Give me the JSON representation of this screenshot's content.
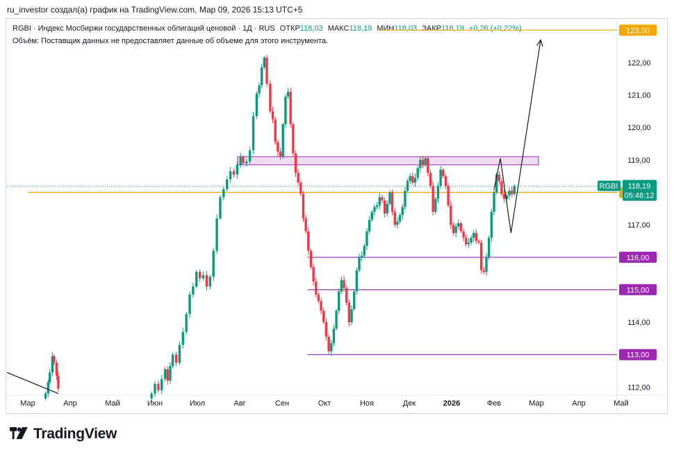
{
  "caption": "ru_investor создал(а) график на TradingView.com, Мар 09, 2026 15:13 UTC+5",
  "legend": {
    "title": "RGBI · Индекс Мосбиржи государственных облигаций ценовой · 1Д · RUS",
    "open_label": "ОТКР",
    "open": "118,03",
    "high_label": "МАКС",
    "high": "118,19",
    "low_label": "МИН",
    "low": "118,03",
    "close_label": "ЗАКР",
    "close": "118,19",
    "change": "+0,26 (+0,22%)"
  },
  "volume_note": "Объём: Поставщик данных не предоставляет данные об объеме для этого инструмента.",
  "brand": "TradingView",
  "colors": {
    "up": "#089981",
    "down": "#f23645",
    "orange": "#f7a600",
    "purple": "#9c27b0",
    "zone": "#e1bee7"
  },
  "chart_data": {
    "type": "candlestick",
    "symbol": "RGBI",
    "timeframe": "1Д",
    "ylim": [
      111.75,
      123.35
    ],
    "y_ticks": [
      "112,00",
      "113,00",
      "114,00",
      "115,00",
      "116,00",
      "117,00",
      "118,00",
      "119,00",
      "120,00",
      "121,00",
      "122,00",
      "123,00"
    ],
    "x_ticks": [
      "Мар",
      "Апр",
      "Май",
      "Июн",
      "Июл",
      "Авг",
      "Сен",
      "Окт",
      "Ноя",
      "Дек",
      "2026",
      "Фев",
      "Мар",
      "Апр",
      "Май"
    ],
    "x_tick_bold": "2026",
    "x_range_months": [
      0,
      14.3
    ],
    "series": [
      [
        0.42,
        111.8
      ],
      [
        0.48,
        112.15
      ],
      [
        0.52,
        112.45
      ],
      [
        0.58,
        112.95
      ],
      [
        0.62,
        112.75
      ],
      [
        0.68,
        112.35
      ],
      [
        0.72,
        111.95
      ],
      [
        2.92,
        111.8
      ],
      [
        3.0,
        112.1
      ],
      [
        3.08,
        111.9
      ],
      [
        3.16,
        112.25
      ],
      [
        3.24,
        112.55
      ],
      [
        3.3,
        112.2
      ],
      [
        3.36,
        112.65
      ],
      [
        3.42,
        113.0
      ],
      [
        3.5,
        112.75
      ],
      [
        3.58,
        113.3
      ],
      [
        3.66,
        113.7
      ],
      [
        3.74,
        114.25
      ],
      [
        3.82,
        114.85
      ],
      [
        3.9,
        115.1
      ],
      [
        3.98,
        115.55
      ],
      [
        4.06,
        115.35
      ],
      [
        4.14,
        115.45
      ],
      [
        4.22,
        115.1
      ],
      [
        4.3,
        115.4
      ],
      [
        4.38,
        116.2
      ],
      [
        4.46,
        117.2
      ],
      [
        4.54,
        117.85
      ],
      [
        4.62,
        118.1
      ],
      [
        4.7,
        118.4
      ],
      [
        4.78,
        118.65
      ],
      [
        4.86,
        118.55
      ],
      [
        4.94,
        118.85
      ],
      [
        5.02,
        119.1
      ],
      [
        5.08,
        118.9
      ],
      [
        5.16,
        118.95
      ],
      [
        5.24,
        119.3
      ],
      [
        5.32,
        120.35
      ],
      [
        5.4,
        121.05
      ],
      [
        5.46,
        121.3
      ],
      [
        5.52,
        121.85
      ],
      [
        5.58,
        122.15
      ],
      [
        5.64,
        121.35
      ],
      [
        5.72,
        120.5
      ],
      [
        5.78,
        120.25
      ],
      [
        5.84,
        119.55
      ],
      [
        5.9,
        119.25
      ],
      [
        5.96,
        119.1
      ],
      [
        6.02,
        120.1
      ],
      [
        6.08,
        120.95
      ],
      [
        6.14,
        121.1
      ],
      [
        6.2,
        120.1
      ],
      [
        6.26,
        119.2
      ],
      [
        6.32,
        118.6
      ],
      [
        6.38,
        118.3
      ],
      [
        6.44,
        117.95
      ],
      [
        6.5,
        117.2
      ],
      [
        6.56,
        116.8
      ],
      [
        6.62,
        116.2
      ],
      [
        6.68,
        115.7
      ],
      [
        6.74,
        115.25
      ],
      [
        6.8,
        114.85
      ],
      [
        6.86,
        114.65
      ],
      [
        6.92,
        114.35
      ],
      [
        6.98,
        114.0
      ],
      [
        7.04,
        113.55
      ],
      [
        7.1,
        113.1
      ],
      [
        7.16,
        113.35
      ],
      [
        7.22,
        113.8
      ],
      [
        7.28,
        114.35
      ],
      [
        7.34,
        114.95
      ],
      [
        7.4,
        115.3
      ],
      [
        7.46,
        115.05
      ],
      [
        7.52,
        114.6
      ],
      [
        7.58,
        114.0
      ],
      [
        7.64,
        114.4
      ],
      [
        7.7,
        114.95
      ],
      [
        7.76,
        115.6
      ],
      [
        7.82,
        116.0
      ],
      [
        7.88,
        116.05
      ],
      [
        7.94,
        116.35
      ],
      [
        8.0,
        116.8
      ],
      [
        8.06,
        117.15
      ],
      [
        8.12,
        117.4
      ],
      [
        8.18,
        117.55
      ],
      [
        8.24,
        117.6
      ],
      [
        8.3,
        117.85
      ],
      [
        8.36,
        117.75
      ],
      [
        8.42,
        117.35
      ],
      [
        8.48,
        117.65
      ],
      [
        8.54,
        118.0
      ],
      [
        8.6,
        117.4
      ],
      [
        8.66,
        117.0
      ],
      [
        8.72,
        117.1
      ],
      [
        8.78,
        117.3
      ],
      [
        8.84,
        117.55
      ],
      [
        8.9,
        118.05
      ],
      [
        8.96,
        118.35
      ],
      [
        9.02,
        118.5
      ],
      [
        9.08,
        118.3
      ],
      [
        9.14,
        118.45
      ],
      [
        9.2,
        118.75
      ],
      [
        9.26,
        119.0
      ],
      [
        9.32,
        118.85
      ],
      [
        9.38,
        119.05
      ],
      [
        9.44,
        118.6
      ],
      [
        9.5,
        118.2
      ],
      [
        9.56,
        117.4
      ],
      [
        9.62,
        117.8
      ],
      [
        9.68,
        118.2
      ],
      [
        9.74,
        118.7
      ],
      [
        9.8,
        118.5
      ],
      [
        9.86,
        118.2
      ],
      [
        9.92,
        117.6
      ],
      [
        9.98,
        117.0
      ],
      [
        10.04,
        116.75
      ],
      [
        10.1,
        116.95
      ],
      [
        10.16,
        117.05
      ],
      [
        10.22,
        116.8
      ],
      [
        10.28,
        116.6
      ],
      [
        10.34,
        116.4
      ],
      [
        10.4,
        116.45
      ],
      [
        10.46,
        116.6
      ],
      [
        10.52,
        116.75
      ],
      [
        10.58,
        116.5
      ],
      [
        10.64,
        116.45
      ],
      [
        10.7,
        115.6
      ],
      [
        10.76,
        115.55
      ],
      [
        10.82,
        116.0
      ],
      [
        10.88,
        116.6
      ],
      [
        10.94,
        117.4
      ],
      [
        11.0,
        118.0
      ],
      [
        11.06,
        118.55
      ],
      [
        11.12,
        118.35
      ],
      [
        11.18,
        117.95
      ],
      [
        11.24,
        117.8
      ],
      [
        11.3,
        117.9
      ],
      [
        11.36,
        118.05
      ],
      [
        11.42,
        117.95
      ],
      [
        11.48,
        118.19
      ]
    ],
    "levels": [
      {
        "value": 123.0,
        "label": "123,00",
        "color": "#f7a600",
        "from_month": 8.3
      },
      {
        "value": 118.0,
        "label": "118,00",
        "color": "#f7a600",
        "from_month": 0.0
      },
      {
        "value": 116.0,
        "label": "116,00",
        "color": "#9c27b0",
        "from_month": 6.6
      },
      {
        "value": 115.0,
        "label": "115,00",
        "color": "#9c27b0",
        "from_month": 6.6
      },
      {
        "value": 113.0,
        "label": "113,00",
        "color": "#9c27b0",
        "from_month": 6.6
      }
    ],
    "zone": {
      "y_low": 118.85,
      "y_high": 119.1,
      "from_month": 4.95,
      "to_month": 12.05
    },
    "forecast_path": [
      [
        11.0,
        118.1
      ],
      [
        11.15,
        119.05
      ],
      [
        11.4,
        116.75
      ],
      [
        12.1,
        122.7
      ]
    ],
    "arrow_tip_index": 3,
    "decline_line": [
      [
        0.0,
        112.45
      ],
      [
        0.72,
        111.8
      ]
    ],
    "current_price": {
      "symbol": "RGBI",
      "value": "118,19",
      "countdown": "05:46:12",
      "y": 118.19
    },
    "price_line_color": "#089981"
  }
}
